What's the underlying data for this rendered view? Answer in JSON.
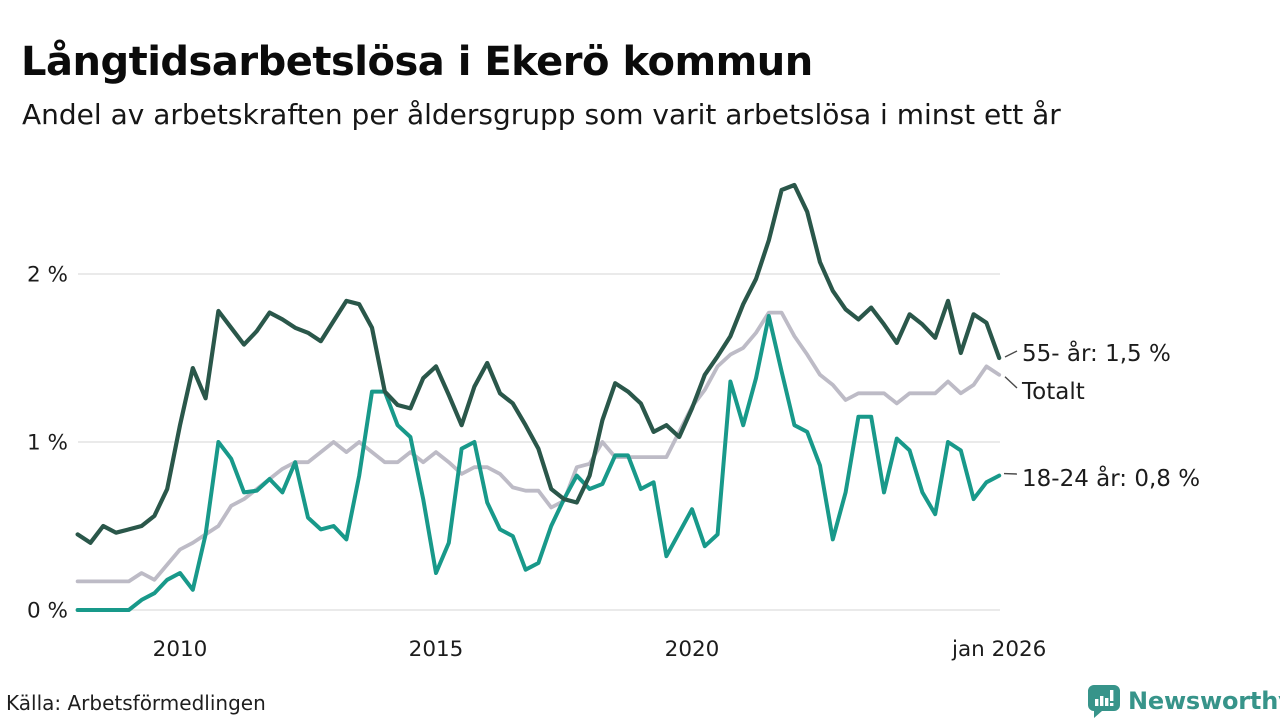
{
  "header": {
    "title": "Långtidsarbetslösa i Ekerö kommun",
    "subtitle": "Andel av arbetskraften per åldersgrupp som varit arbetslösa i minst ett år"
  },
  "chart_data": {
    "type": "line",
    "title": "Långtidsarbetslösa i Ekerö kommun",
    "subtitle": "Andel av arbetskraften per åldersgrupp som varit arbetslösa i minst ett år",
    "x_unit": "year (decimal, quarterly samples read from graphic)",
    "y_unit": "percent of labour force",
    "ylim": [
      0,
      2.6
    ],
    "grid": "horizontal",
    "yticks": [
      {
        "value": 0,
        "label": "0 %"
      },
      {
        "value": 1,
        "label": "1 %"
      },
      {
        "value": 2,
        "label": "2 %"
      }
    ],
    "xticks": [
      {
        "value": 2010,
        "label": "2010"
      },
      {
        "value": 2015,
        "label": "2015"
      },
      {
        "value": 2020,
        "label": "2020"
      },
      {
        "value": 2026,
        "label": "jan 2026"
      }
    ],
    "x": [
      2008,
      2008.25,
      2008.5,
      2008.75,
      2009,
      2009.25,
      2009.5,
      2009.75,
      2010,
      2010.25,
      2010.5,
      2010.75,
      2011,
      2011.25,
      2011.5,
      2011.75,
      2012,
      2012.25,
      2012.5,
      2012.75,
      2013,
      2013.25,
      2013.5,
      2013.75,
      2014,
      2014.25,
      2014.5,
      2014.75,
      2015,
      2015.25,
      2015.5,
      2015.75,
      2016,
      2016.25,
      2016.5,
      2016.75,
      2017,
      2017.25,
      2017.5,
      2017.75,
      2018,
      2018.25,
      2018.5,
      2018.75,
      2019,
      2019.25,
      2019.5,
      2019.75,
      2020,
      2020.25,
      2020.5,
      2020.75,
      2021,
      2021.25,
      2021.5,
      2021.75,
      2022,
      2022.25,
      2022.5,
      2022.75,
      2023,
      2023.25,
      2023.5,
      2023.75,
      2024,
      2024.25,
      2024.5,
      2024.75,
      2025,
      2025.25,
      2025.5,
      2025.75,
      2026
    ],
    "series": [
      {
        "id": "total",
        "label": "Totalt",
        "color": "#bdbbc6",
        "stroke_width": 3.8,
        "values": [
          0.17,
          0.17,
          0.17,
          0.17,
          0.17,
          0.22,
          0.18,
          0.27,
          0.36,
          0.4,
          0.45,
          0.5,
          0.62,
          0.66,
          0.72,
          0.78,
          0.84,
          0.88,
          0.88,
          0.94,
          1.0,
          0.94,
          1.0,
          0.94,
          0.88,
          0.88,
          0.94,
          0.88,
          0.94,
          0.88,
          0.81,
          0.85,
          0.85,
          0.81,
          0.73,
          0.71,
          0.71,
          0.61,
          0.65,
          0.85,
          0.87,
          1.0,
          0.91,
          0.91,
          0.91,
          0.91,
          0.91,
          1.06,
          1.21,
          1.31,
          1.45,
          1.52,
          1.56,
          1.65,
          1.77,
          1.77,
          1.63,
          1.52,
          1.4,
          1.34,
          1.25,
          1.29,
          1.29,
          1.29,
          1.23,
          1.29,
          1.29,
          1.29,
          1.36,
          1.29,
          1.34,
          1.45,
          1.4
        ]
      },
      {
        "id": "young",
        "label": "18-24 år",
        "color": "#18998a",
        "stroke_width": 4.0,
        "values": [
          0,
          0,
          0,
          0,
          0,
          0.06,
          0.1,
          0.18,
          0.22,
          0.12,
          0.45,
          1.0,
          0.9,
          0.7,
          0.71,
          0.78,
          0.7,
          0.88,
          0.55,
          0.48,
          0.5,
          0.42,
          0.8,
          1.3,
          1.3,
          1.1,
          1.03,
          0.66,
          0.22,
          0.4,
          0.96,
          1.0,
          0.64,
          0.48,
          0.44,
          0.24,
          0.28,
          0.5,
          0.66,
          0.8,
          0.72,
          0.75,
          0.92,
          0.92,
          0.72,
          0.76,
          0.32,
          0.46,
          0.6,
          0.38,
          0.45,
          1.36,
          1.1,
          1.38,
          1.75,
          1.42,
          1.1,
          1.06,
          0.86,
          0.42,
          0.7,
          1.15,
          1.15,
          0.7,
          1.02,
          0.95,
          0.7,
          0.57,
          1.0,
          0.95,
          0.66,
          0.76,
          0.8
        ]
      },
      {
        "id": "older",
        "label": "55- år",
        "color": "#2a574a",
        "stroke_width": 4.2,
        "values": [
          0.45,
          0.4,
          0.5,
          0.46,
          0.48,
          0.5,
          0.56,
          0.72,
          1.1,
          1.44,
          1.26,
          1.78,
          1.68,
          1.58,
          1.66,
          1.77,
          1.73,
          1.68,
          1.65,
          1.6,
          1.72,
          1.84,
          1.82,
          1.68,
          1.3,
          1.22,
          1.2,
          1.38,
          1.45,
          1.28,
          1.1,
          1.33,
          1.47,
          1.29,
          1.23,
          1.1,
          0.96,
          0.72,
          0.66,
          0.64,
          0.8,
          1.13,
          1.35,
          1.3,
          1.23,
          1.06,
          1.1,
          1.03,
          1.2,
          1.4,
          1.51,
          1.63,
          1.82,
          1.97,
          2.2,
          2.5,
          2.53,
          2.37,
          2.07,
          1.9,
          1.79,
          1.73,
          1.8,
          1.7,
          1.59,
          1.76,
          1.7,
          1.62,
          1.84,
          1.53,
          1.76,
          1.71,
          1.5
        ]
      }
    ],
    "annotations": {
      "older": {
        "text": "55- år: 1,5 %",
        "series": "older",
        "end_value": 1.5
      },
      "total": {
        "text": "Totalt",
        "series": "total",
        "end_value": 1.4
      },
      "young": {
        "text": "18-24 år: 0,8 %",
        "series": "young",
        "end_value": 0.8
      }
    },
    "colors": {
      "grid": "#e3e3e3",
      "tick_text": "#1c1c1c",
      "connector": "#4a4a4a"
    }
  },
  "footer": {
    "source": "Källa: Arbetsförmedlingen",
    "logo_text": "Newsworthy",
    "logo_color": "#37948a"
  }
}
